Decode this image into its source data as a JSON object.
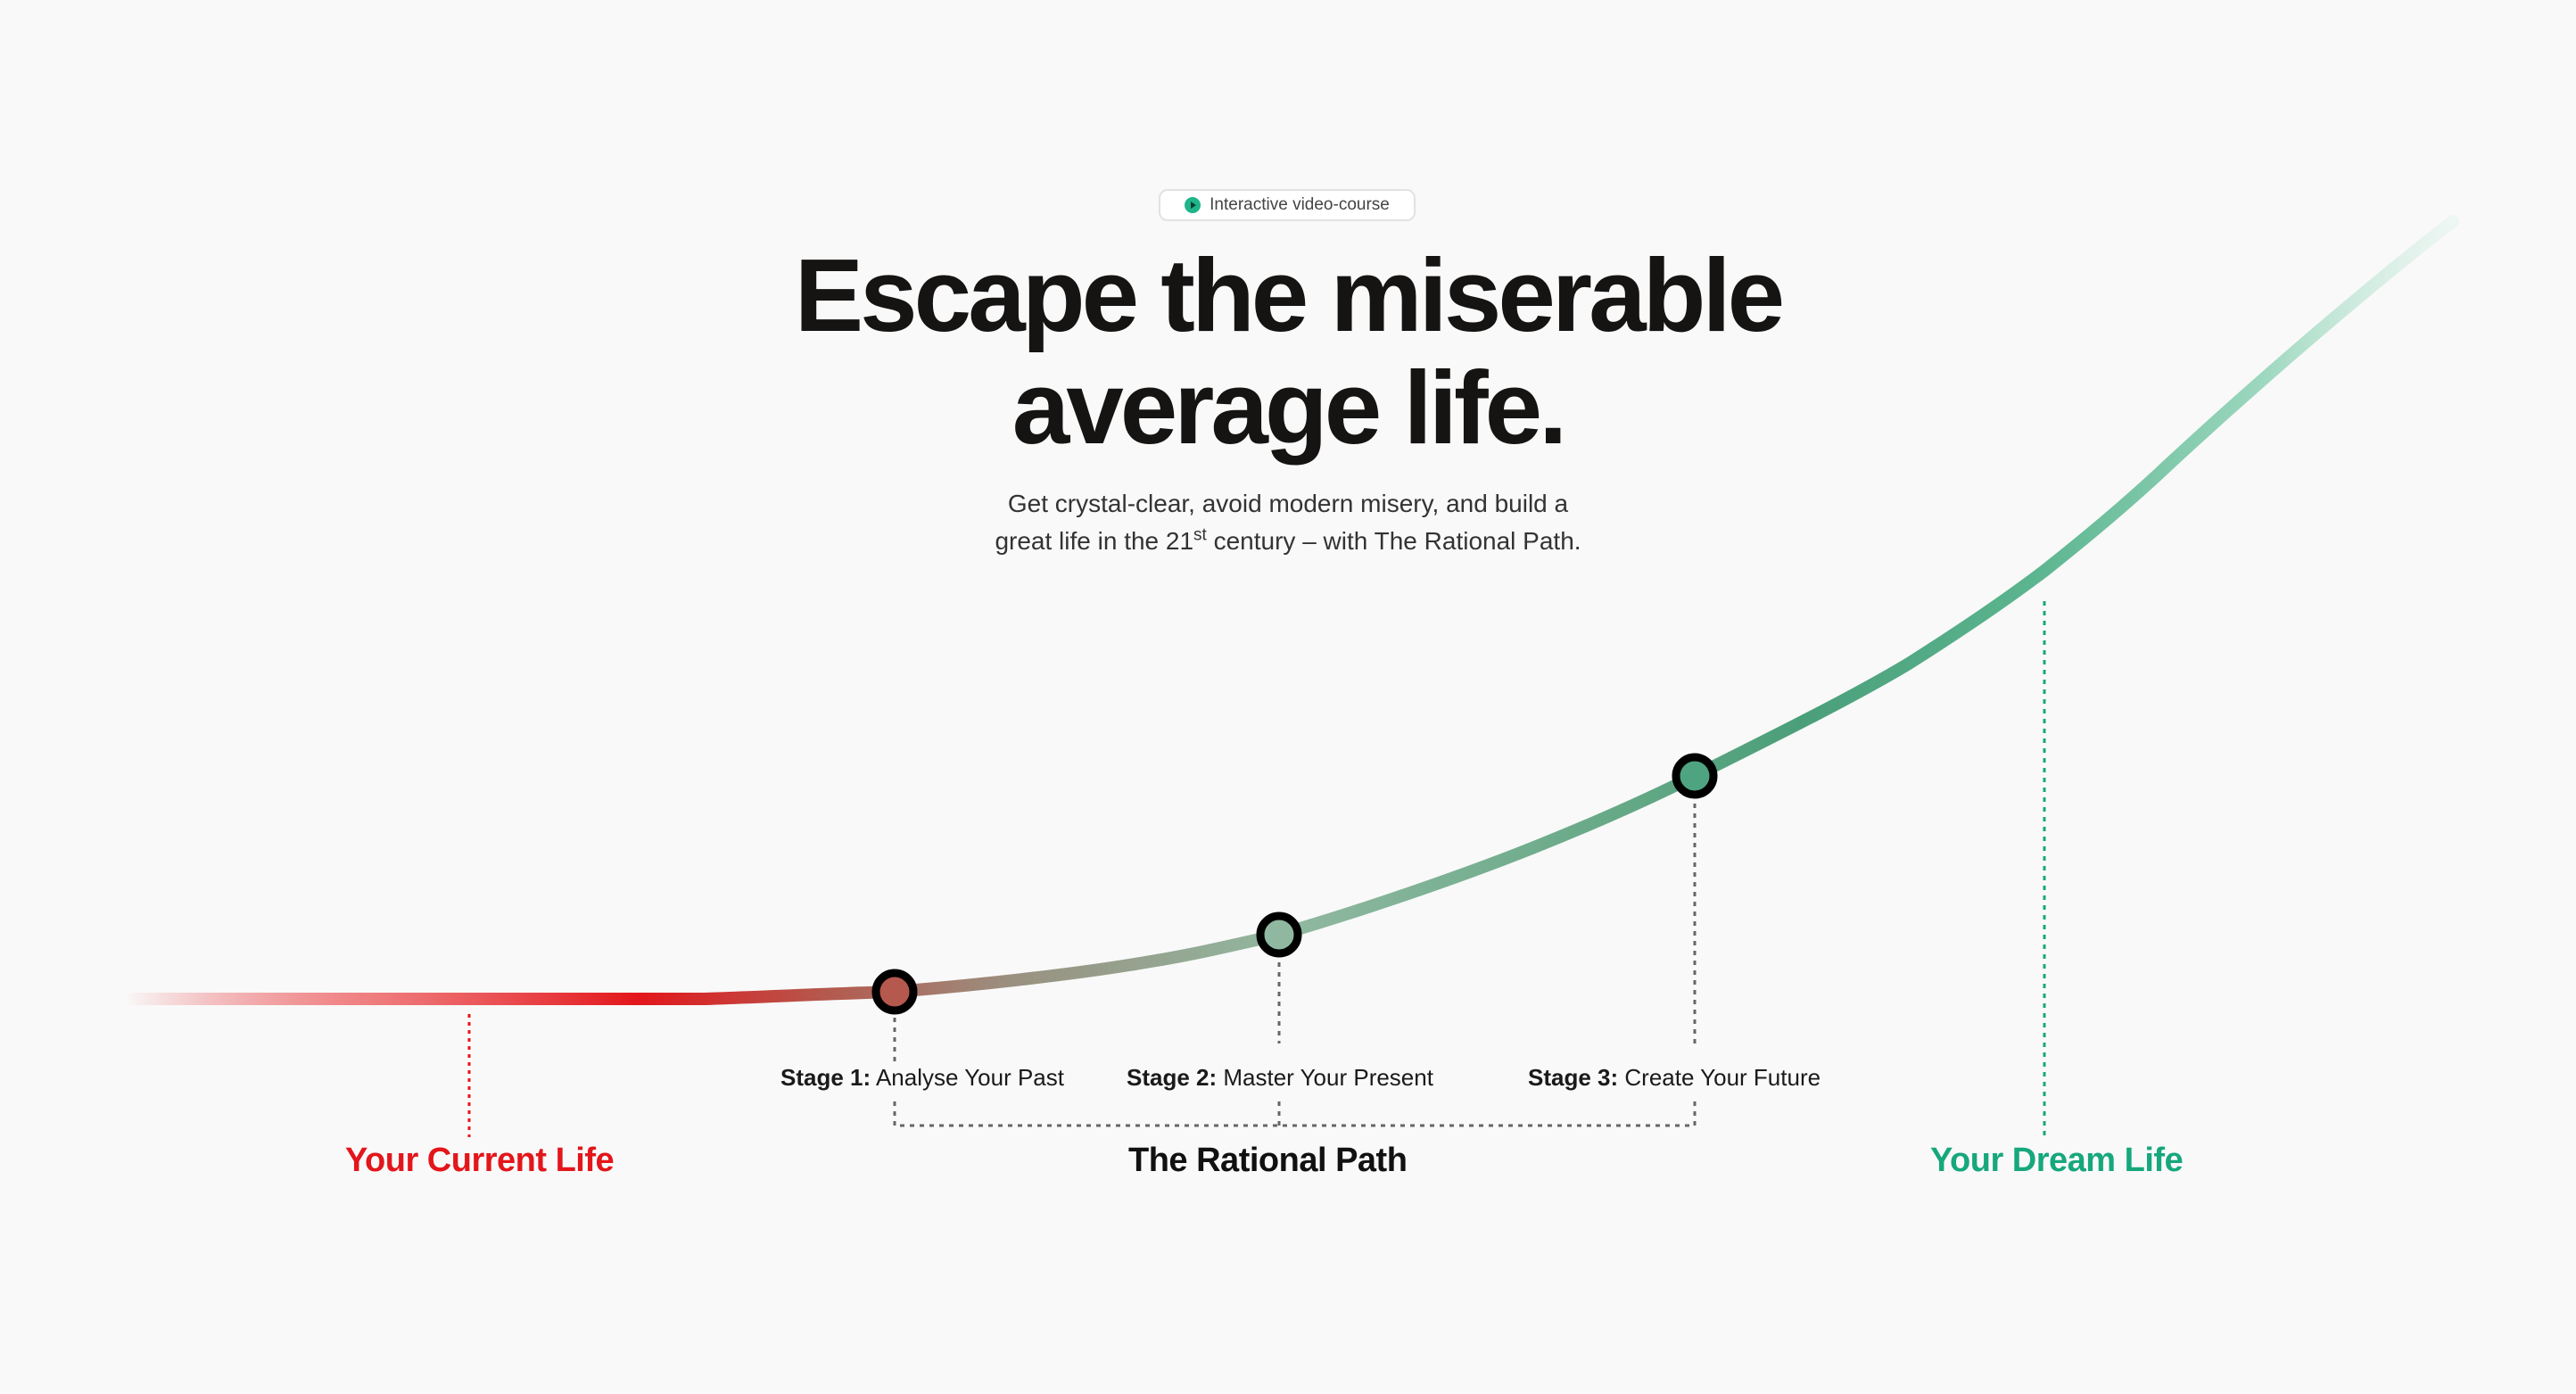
{
  "badge": {
    "icon": "play-circle-icon",
    "text": "Interactive video-course"
  },
  "headline": {
    "line1": "Escape the miserable",
    "line2": "average life."
  },
  "subtitle": {
    "line1": "Get crystal-clear, avoid modern misery, and build a",
    "line2_before": "great life in the 21",
    "line2_sup": "st",
    "line2_after": " century – with The Rational Path."
  },
  "stages": [
    {
      "prefix": "Stage 1:",
      "text": " Analyse Your Past"
    },
    {
      "prefix": "Stage 2:",
      "text": " Master Your Present"
    },
    {
      "prefix": "Stage 3:",
      "text": " Create Your Future"
    }
  ],
  "labels": {
    "current_life": "Your Current Life",
    "rational_path": "The Rational Path",
    "dream_life": "Your Dream Life"
  },
  "colors": {
    "current_red": "#e3161b",
    "dream_green": "#17a77c",
    "path_green": "#4ea481",
    "ink": "#161412",
    "background": "#f9f9f9"
  }
}
